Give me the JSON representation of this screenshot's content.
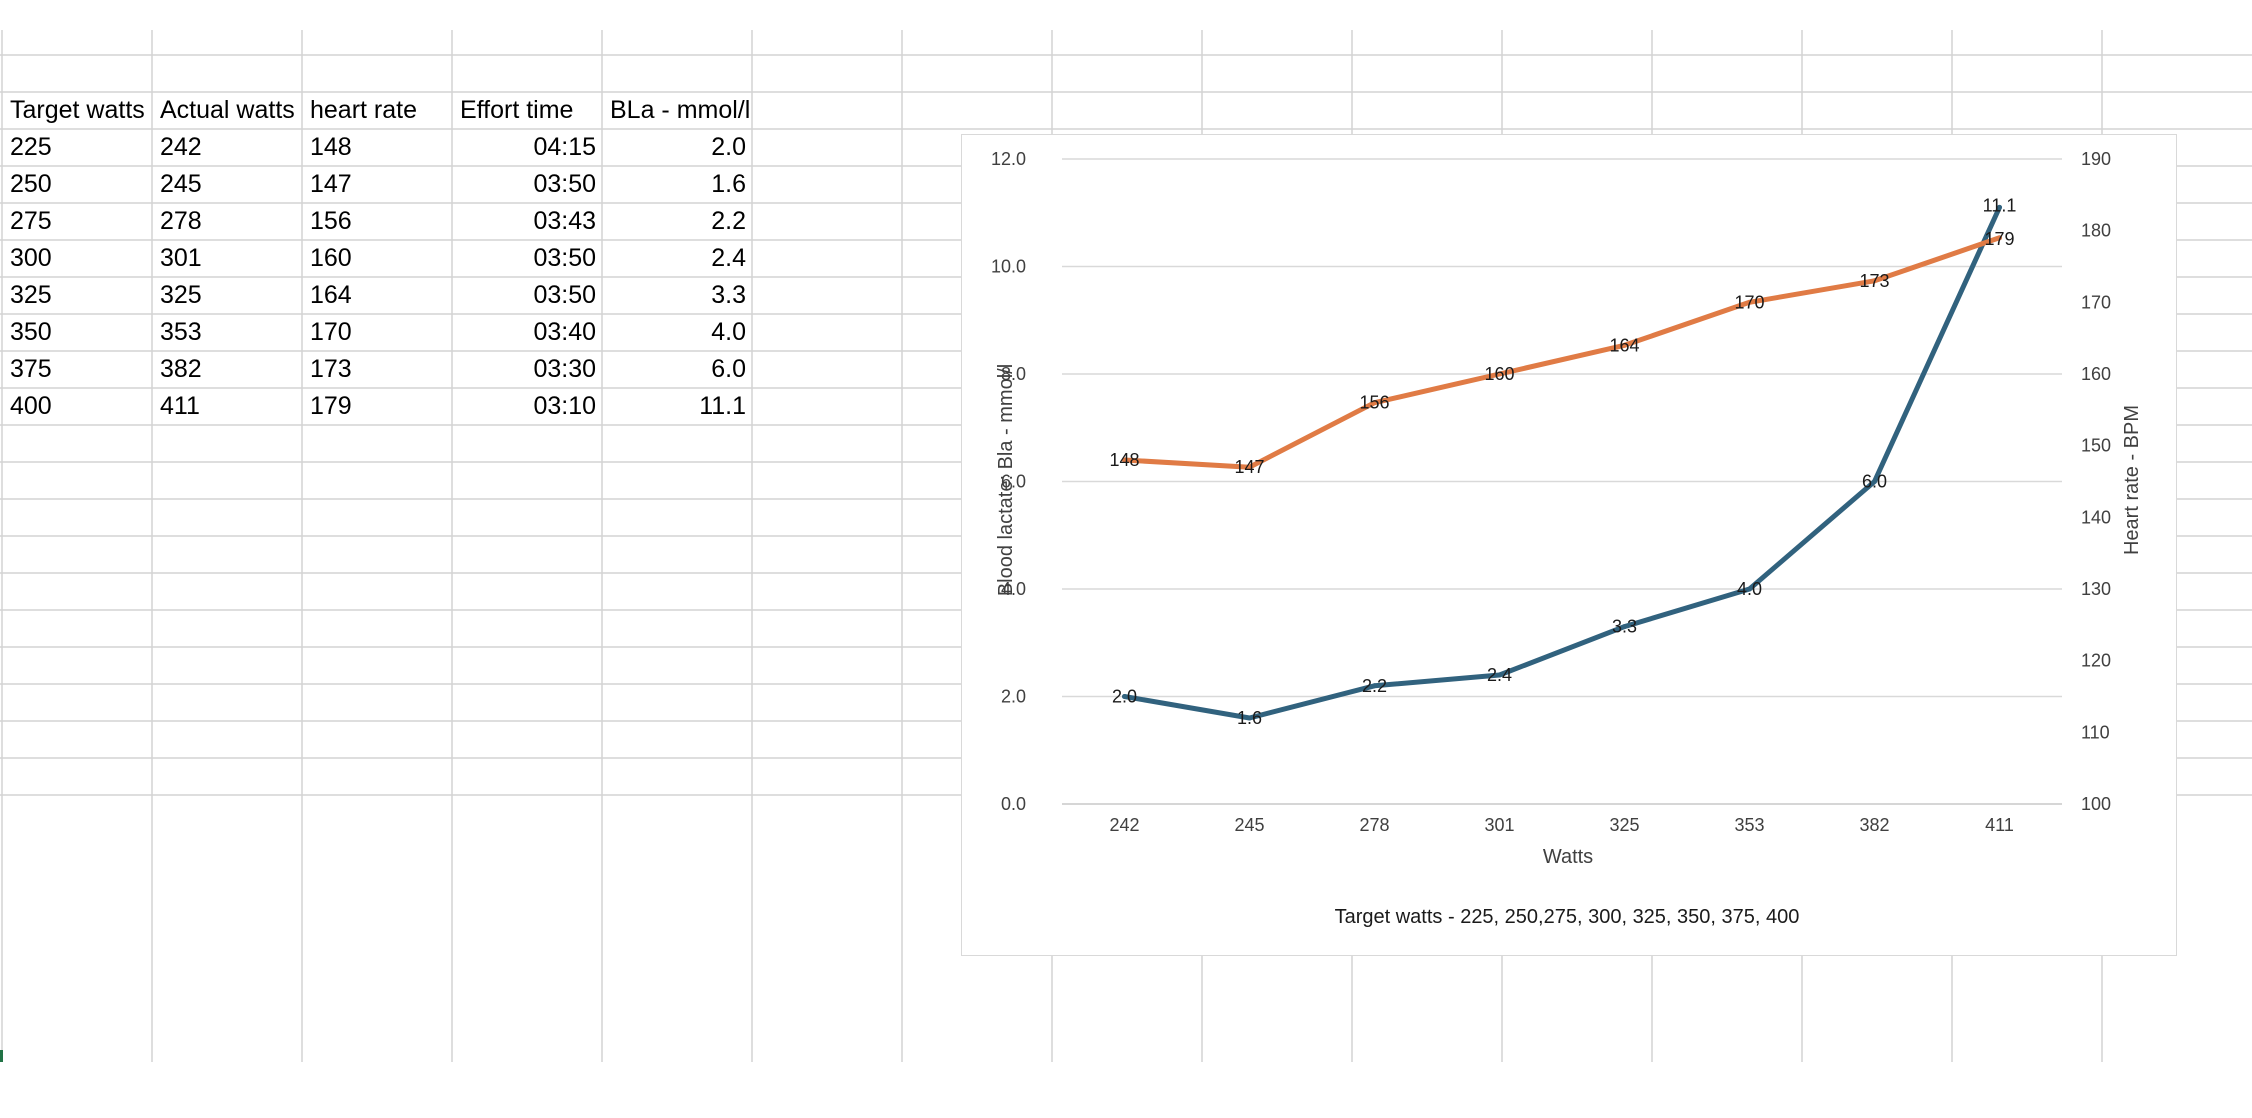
{
  "sheet": {
    "headers": [
      "Target watts",
      "Actual watts",
      "heart rate",
      "Effort time",
      "BLa - mmol/l"
    ],
    "rows": [
      [
        "225",
        "242",
        "148",
        "04:15",
        "2.0"
      ],
      [
        "250",
        "245",
        "147",
        "03:50",
        "1.6"
      ],
      [
        "275",
        "278",
        "156",
        "03:43",
        "2.2"
      ],
      [
        "300",
        "301",
        "160",
        "03:50",
        "2.4"
      ],
      [
        "325",
        "325",
        "164",
        "03:50",
        "3.3"
      ],
      [
        "350",
        "353",
        "170",
        "03:40",
        "4.0"
      ],
      [
        "375",
        "382",
        "173",
        "03:30",
        "6.0"
      ],
      [
        "400",
        "411",
        "179",
        "03:10",
        "11.1"
      ]
    ]
  },
  "chart_data": {
    "type": "line",
    "title": "",
    "xlabel": "Watts",
    "ylabel": "Blood lactate:  Bla - mmol/l",
    "y2label": "Heart rate - BPM",
    "caption": "Target watts -  225, 250,275, 300, 325, 350, 375, 400",
    "categories": [
      "242",
      "245",
      "278",
      "301",
      "325",
      "353",
      "382",
      "411"
    ],
    "ylim": [
      0,
      12
    ],
    "yticks": [
      "0.0",
      "2.0",
      "4.0",
      "6.0",
      "8.0",
      "10.0",
      "12.0"
    ],
    "y2lim": [
      100,
      190
    ],
    "y2ticks": [
      "100",
      "110",
      "120",
      "130",
      "140",
      "150",
      "160",
      "170",
      "180",
      "190"
    ],
    "grid": true,
    "legend": "none",
    "series": [
      {
        "axis": "left",
        "color": "#31627e",
        "values": [
          2.0,
          1.6,
          2.2,
          2.4,
          3.3,
          4.0,
          6.0,
          11.1
        ],
        "labels": [
          "2.0",
          "1.6",
          "2.2",
          "2.4",
          "3.3",
          "4.0",
          "6.0",
          "11.1"
        ]
      },
      {
        "axis": "right",
        "color": "#e07b45",
        "values": [
          148,
          147,
          156,
          160,
          164,
          170,
          173,
          179
        ],
        "labels": [
          "148",
          "147",
          "156",
          "160",
          "164",
          "170",
          "173",
          "179"
        ]
      }
    ]
  }
}
